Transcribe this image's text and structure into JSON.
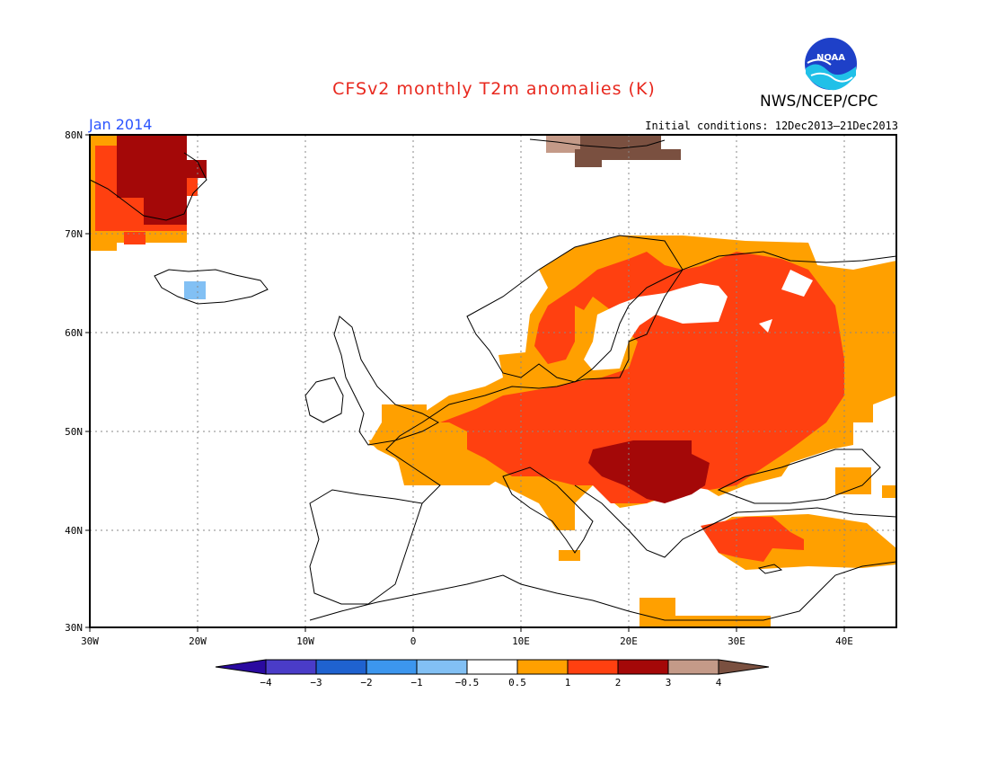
{
  "header": {
    "title": "CFSv2 monthly T2m anomalies (K)",
    "agency": "NWS/NCEP/CPC",
    "period": "Jan 2014",
    "initial_conditions": "Initial conditions: 12Dec2013–21Dec2013"
  },
  "logo": {
    "text": "NOAA",
    "color": "#1e40c8"
  },
  "map": {
    "lat_labels": [
      "80N",
      "70N",
      "60N",
      "50N",
      "40N",
      "30N"
    ],
    "lon_labels": [
      "30W",
      "20W",
      "10W",
      "0",
      "10E",
      "20E",
      "30E",
      "40E"
    ],
    "projection": "lat-lon",
    "lon_range": [
      -30,
      45
    ],
    "lat_range": [
      30,
      80
    ]
  },
  "colorbar": {
    "tick_labels": [
      "−4",
      "−3",
      "−2",
      "−1",
      "−0.5",
      "0.5",
      "1",
      "2",
      "3",
      "4"
    ],
    "colors": [
      "#2a0aa0",
      "#4a3cc8",
      "#1f62d0",
      "#3c96ee",
      "#82c0f4",
      "#ffffff",
      "#ffa000",
      "#ff4010",
      "#a40808",
      "#c49a88",
      "#7a5040"
    ]
  },
  "anomaly_regions": [
    {
      "name": "greenland",
      "category": "1–2 / 2–3"
    },
    {
      "name": "iceland-west",
      "category": "−1 to −0.5"
    },
    {
      "name": "svalbard",
      "category": "3–4"
    },
    {
      "name": "europe-east",
      "category": "1–2"
    },
    {
      "name": "balkans",
      "category": "2–3"
    },
    {
      "name": "iberia-france",
      "category": "0.5–1"
    }
  ]
}
